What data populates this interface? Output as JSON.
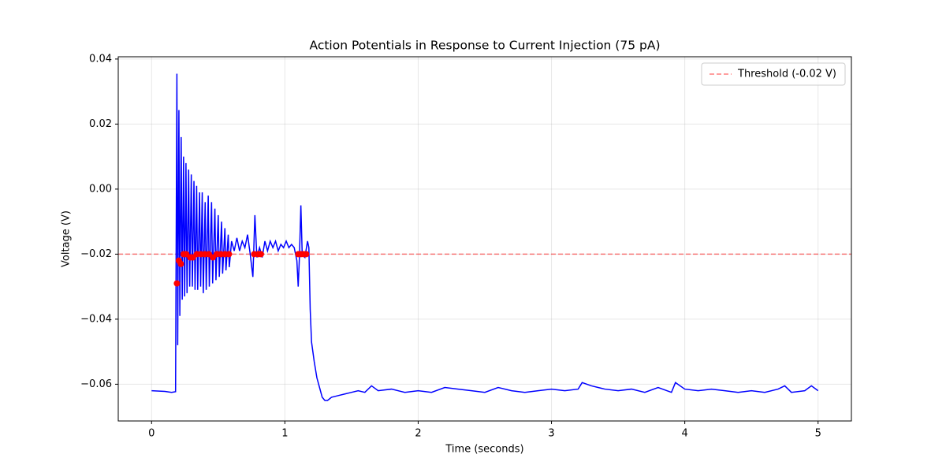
{
  "chart_data": {
    "type": "line",
    "title": "Action Potentials in Response to Current Injection (75 pA)",
    "x_label": "Time (seconds)",
    "y_label": "Voltage (V)",
    "xlim": [
      -0.25,
      5.25
    ],
    "ylim": [
      -0.0713,
      0.0407
    ],
    "xticks": [
      0,
      1,
      2,
      3,
      4,
      5
    ],
    "yticks": [
      {
        "value": -0.06,
        "label": "−0.06"
      },
      {
        "value": -0.04,
        "label": "−0.04"
      },
      {
        "value": -0.02,
        "label": "−0.02"
      },
      {
        "value": 0,
        "label": "0.00"
      },
      {
        "value": 0.02,
        "label": "0.02"
      },
      {
        "value": 0.04,
        "label": "0.04"
      }
    ],
    "grid": true,
    "legend_position": "upper right",
    "series": [
      {
        "type": "line",
        "color": "#0000ff",
        "x": [
          0,
          0.1,
          0.15,
          0.18,
          0.183,
          0.19,
          0.196,
          0.205,
          0.212,
          0.222,
          0.23,
          0.24,
          0.248,
          0.258,
          0.266,
          0.278,
          0.286,
          0.298,
          0.306,
          0.318,
          0.326,
          0.338,
          0.346,
          0.36,
          0.368,
          0.38,
          0.388,
          0.402,
          0.41,
          0.425,
          0.433,
          0.45,
          0.458,
          0.475,
          0.483,
          0.5,
          0.508,
          0.525,
          0.533,
          0.55,
          0.558,
          0.575,
          0.583,
          0.6,
          0.62,
          0.64,
          0.66,
          0.68,
          0.7,
          0.72,
          0.74,
          0.76,
          0.775,
          0.79,
          0.81,
          0.83,
          0.85,
          0.87,
          0.89,
          0.91,
          0.93,
          0.95,
          0.97,
          0.99,
          1.01,
          1.03,
          1.05,
          1.07,
          1.09,
          1.1,
          1.11,
          1.12,
          1.13,
          1.15,
          1.17,
          1.18,
          1.19,
          1.2,
          1.22,
          1.24,
          1.26,
          1.28,
          1.3,
          1.32,
          1.35,
          1.4,
          1.45,
          1.5,
          1.55,
          1.6,
          1.65,
          1.7,
          1.8,
          1.9,
          2.0,
          2.1,
          2.2,
          2.3,
          2.4,
          2.5,
          2.6,
          2.7,
          2.8,
          2.9,
          3.0,
          3.1,
          3.2,
          3.23,
          3.3,
          3.4,
          3.5,
          3.6,
          3.7,
          3.8,
          3.9,
          3.93,
          4.0,
          4.1,
          4.2,
          4.3,
          4.4,
          4.5,
          4.6,
          4.7,
          4.75,
          4.8,
          4.9,
          4.95,
          5.0
        ],
        "values": [
          -0.062,
          -0.0622,
          -0.0625,
          -0.0623,
          -0.03,
          0.0355,
          -0.048,
          0.0243,
          -0.039,
          0.016,
          -0.034,
          0.01,
          -0.033,
          0.008,
          -0.032,
          0.006,
          -0.03,
          0.0045,
          -0.03,
          0.0025,
          -0.031,
          0.001,
          -0.031,
          -0.001,
          -0.03,
          -0.001,
          -0.032,
          -0.004,
          -0.031,
          -0.002,
          -0.03,
          -0.004,
          -0.029,
          -0.006,
          -0.028,
          -0.008,
          -0.027,
          -0.01,
          -0.026,
          -0.012,
          -0.025,
          -0.014,
          -0.024,
          -0.016,
          -0.019,
          -0.015,
          -0.019,
          -0.016,
          -0.018,
          -0.014,
          -0.02,
          -0.027,
          -0.008,
          -0.021,
          -0.018,
          -0.021,
          -0.016,
          -0.019,
          -0.016,
          -0.018,
          -0.016,
          -0.019,
          -0.017,
          -0.018,
          -0.016,
          -0.018,
          -0.017,
          -0.018,
          -0.022,
          -0.03,
          -0.02,
          -0.005,
          -0.02,
          -0.021,
          -0.016,
          -0.018,
          -0.037,
          -0.047,
          -0.053,
          -0.058,
          -0.061,
          -0.064,
          -0.065,
          -0.065,
          -0.064,
          -0.0635,
          -0.063,
          -0.0625,
          -0.062,
          -0.0625,
          -0.0605,
          -0.062,
          -0.0615,
          -0.0625,
          -0.062,
          -0.0625,
          -0.061,
          -0.0615,
          -0.062,
          -0.0625,
          -0.061,
          -0.062,
          -0.0625,
          -0.062,
          -0.0615,
          -0.062,
          -0.0615,
          -0.0595,
          -0.0605,
          -0.0615,
          -0.062,
          -0.0615,
          -0.0625,
          -0.061,
          -0.0625,
          -0.0595,
          -0.0615,
          -0.062,
          -0.0615,
          -0.062,
          -0.0625,
          -0.062,
          -0.0625,
          -0.0615,
          -0.0605,
          -0.0625,
          -0.062,
          -0.0605,
          -0.062
        ]
      },
      {
        "type": "scatter",
        "color": "#ff0000",
        "x": [
          0.19,
          0.205,
          0.22,
          0.24,
          0.26,
          0.29,
          0.31,
          0.34,
          0.37,
          0.4,
          0.43,
          0.46,
          0.49,
          0.52,
          0.55,
          0.58,
          0.77,
          0.8,
          0.82,
          1.1,
          1.12,
          1.14,
          1.16
        ],
        "values": [
          -0.029,
          -0.022,
          -0.023,
          -0.02,
          -0.02,
          -0.021,
          -0.021,
          -0.02,
          -0.02,
          -0.02,
          -0.02,
          -0.021,
          -0.02,
          -0.02,
          -0.02,
          -0.02,
          -0.02,
          -0.02,
          -0.02,
          -0.02,
          -0.02,
          -0.02,
          -0.02
        ]
      }
    ],
    "threshold": {
      "value": -0.02,
      "label": "Threshold (-0.02 V)",
      "color": "#ff0000",
      "alpha": 0.5,
      "dashed": true
    }
  }
}
